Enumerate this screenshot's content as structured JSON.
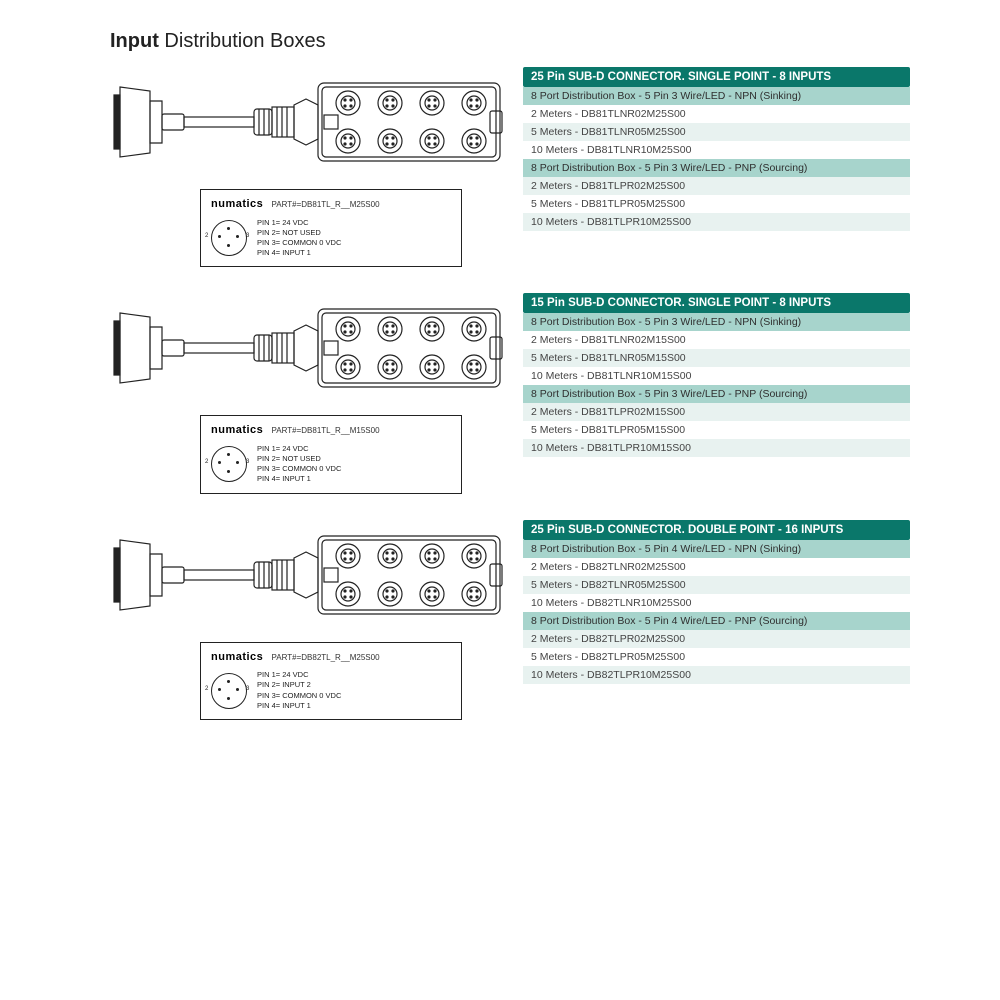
{
  "title_bold": "Input",
  "title_light": " Distribution Boxes",
  "brand": "numatics",
  "colors": {
    "header_bg": "#0a776a",
    "header_fg": "#ffffff",
    "sub_bg": "#a7d4cc",
    "row_alt_bg": "#e8f2f0",
    "text": "#444444"
  },
  "sections": [
    {
      "part_label": "PART#=DB81TL_R__M25S00",
      "pins": [
        "PIN 1= 24 VDC",
        "PIN 2= NOT USED",
        "PIN 3= COMMON 0 VDC",
        "PIN 4= INPUT 1"
      ],
      "header": "25 Pin SUB-D CONNECTOR. SINGLE POINT - 8 INPUTS",
      "groups": [
        {
          "subtitle": "8 Port Distribution Box - 5 Pin 3 Wire/LED - NPN (Sinking)",
          "rows": [
            "2 Meters  - DB81TLNR02M25S00",
            "5 Meters - DB81TLNR05M25S00",
            "10 Meters - DB81TLNR10M25S00"
          ]
        },
        {
          "subtitle": "8 Port Distribution Box - 5 Pin 3 Wire/LED - PNP (Sourcing)",
          "rows": [
            "2 Meters  - DB81TLPR02M25S00",
            "5 Meters  - DB81TLPR05M25S00",
            "10 Meters - DB81TLPR10M25S00"
          ]
        }
      ]
    },
    {
      "part_label": "PART#=DB81TL_R__M15S00",
      "pins": [
        "PIN 1= 24 VDC",
        "PIN 2= NOT USED",
        "PIN 3= COMMON 0 VDC",
        "PIN 4= INPUT 1"
      ],
      "header": "15 Pin SUB-D CONNECTOR. SINGLE POINT - 8 INPUTS",
      "groups": [
        {
          "subtitle": "8 Port Distribution Box - 5 Pin 3 Wire/LED - NPN (Sinking)",
          "rows": [
            "2 Meters  - DB81TLNR02M15S00",
            "5 Meters - DB81TLNR05M15S00",
            "10 Meters - DB81TLNR10M15S00"
          ]
        },
        {
          "subtitle": "8 Port Distribution Box - 5 Pin 3 Wire/LED - PNP (Sourcing)",
          "rows": [
            "2 Meters  - DB81TLPR02M15S00",
            "5 Meters  - DB81TLPR05M15S00",
            "10 Meters - DB81TLPR10M15S00"
          ]
        }
      ]
    },
    {
      "part_label": "PART#=DB82TL_R__M25S00",
      "pins": [
        "PIN 1= 24 VDC",
        "PIN 2= INPUT 2",
        "PIN 3= COMMON 0 VDC",
        "PIN 4= INPUT 1"
      ],
      "header": "25 Pin SUB-D CONNECTOR. DOUBLE POINT - 16 INPUTS",
      "groups": [
        {
          "subtitle": "8 Port Distribution Box - 5 Pin 4 Wire/LED - NPN (Sinking)",
          "rows": [
            "2 Meters  - DB82TLNR02M25S00",
            "5 Meters - DB82TLNR05M25S00",
            "10 Meters - DB82TLNR10M25S00"
          ]
        },
        {
          "subtitle": "8 Port Distribution Box - 5 Pin 4 Wire/LED - PNP (Sourcing)",
          "rows": [
            "2 Meters  - DB82TLPR02M25S00",
            "5 Meters  - DB82TLPR05M25S00",
            "10 Meters - DB82TLPR10M25S00"
          ]
        }
      ]
    }
  ]
}
